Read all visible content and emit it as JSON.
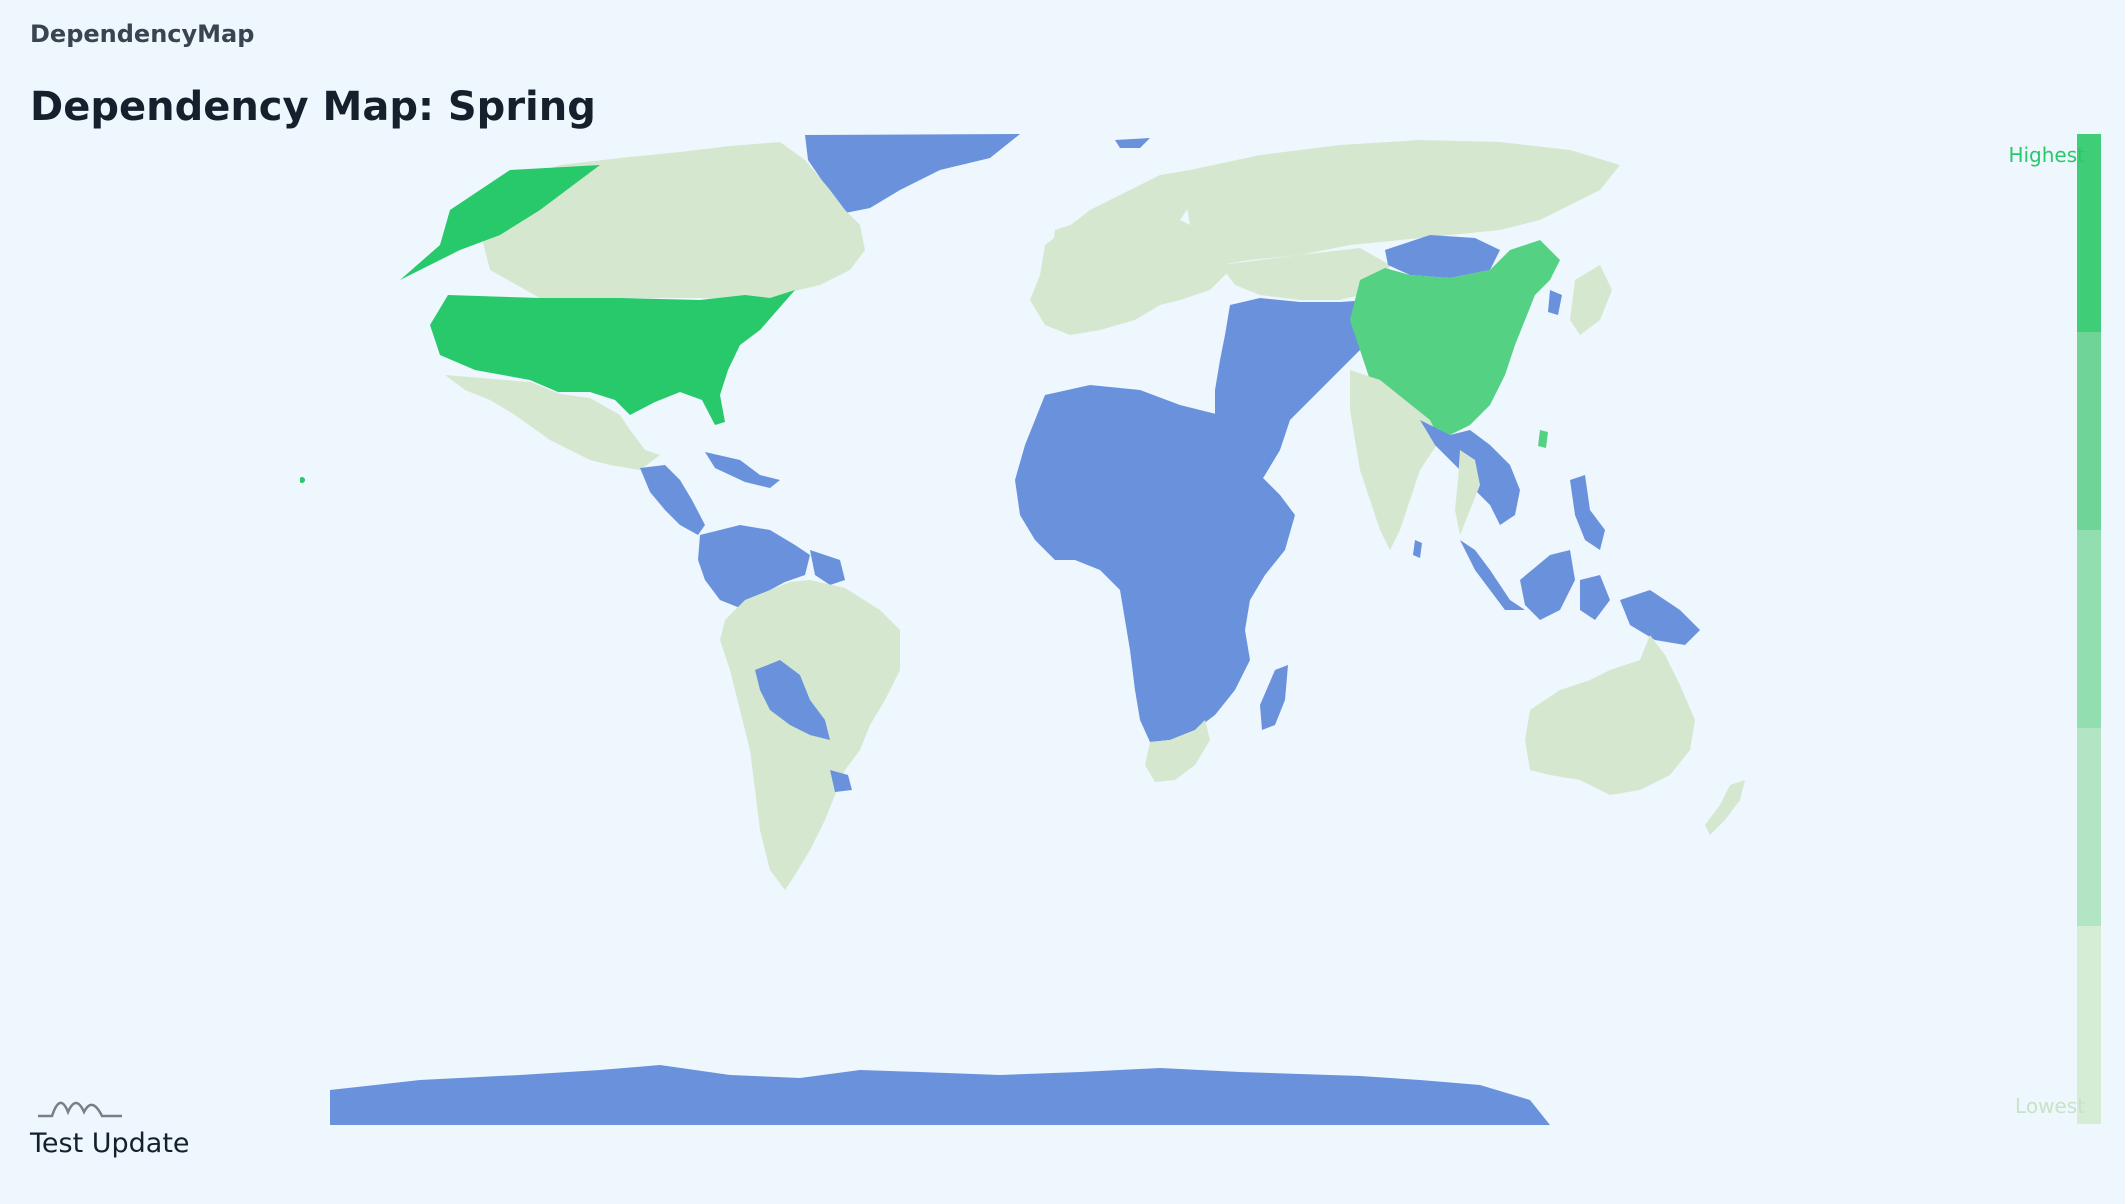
{
  "app": {
    "brand": "DependencyMap"
  },
  "page": {
    "title": "Dependency Map: Spring"
  },
  "legend": {
    "high_label": "Highest",
    "low_label": "Lowest",
    "steps": [
      "#3fcd78",
      "#6ed596",
      "#93deb0",
      "#b2e5c3",
      "#d5ecd5"
    ]
  },
  "map_colors": {
    "highest": "#28c96b",
    "high": "#55d184",
    "low": "#d5e8cf",
    "none": "#6a92dc"
  },
  "footer": {
    "label": "Test Update"
  }
}
